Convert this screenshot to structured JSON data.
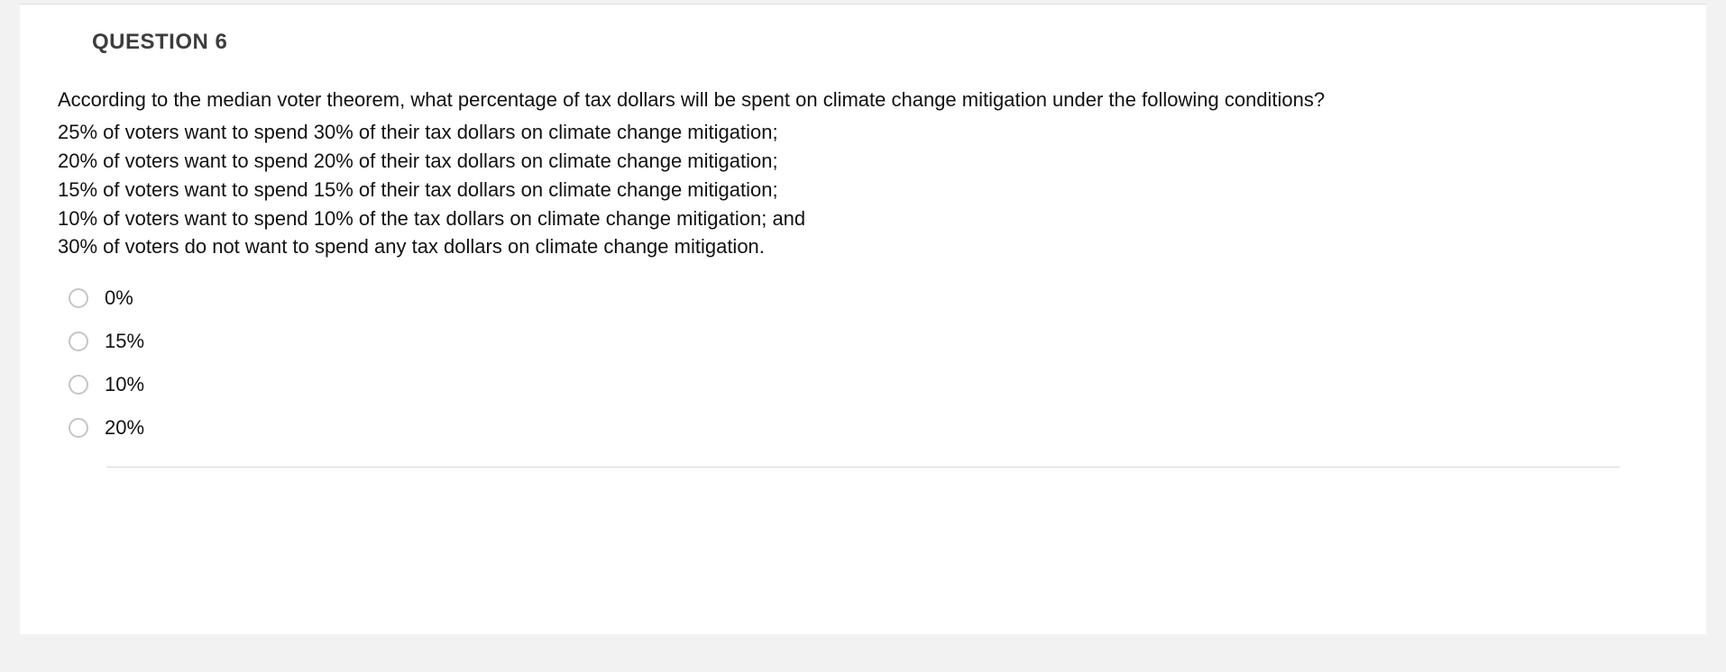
{
  "question": {
    "title": "QUESTION 6",
    "prompt": "According to the median voter theorem, what percentage of tax dollars will be spent on climate change mitigation under the following conditions?",
    "conditions": [
      "25% of voters want to spend 30% of their tax dollars on climate change mitigation;",
      "20% of voters want to spend 20% of their tax dollars on climate change mitigation;",
      "15% of voters want to spend 15% of their tax dollars on climate change mitigation;",
      "10% of voters want to spend 10% of the tax dollars on climate change mitigation; and",
      "30% of voters do not want to spend any tax dollars on climate change mitigation."
    ],
    "options": [
      {
        "label": "0%"
      },
      {
        "label": "15%"
      },
      {
        "label": "10%"
      },
      {
        "label": "20%"
      }
    ]
  },
  "colors": {
    "page_bg": "#f2f2f2",
    "card_bg": "#ffffff",
    "border": "#e1e1e1",
    "title": "#3d3d3d",
    "text": "#111111",
    "radio_border": "#c5c5c5",
    "rule": "#d9d9d9"
  }
}
